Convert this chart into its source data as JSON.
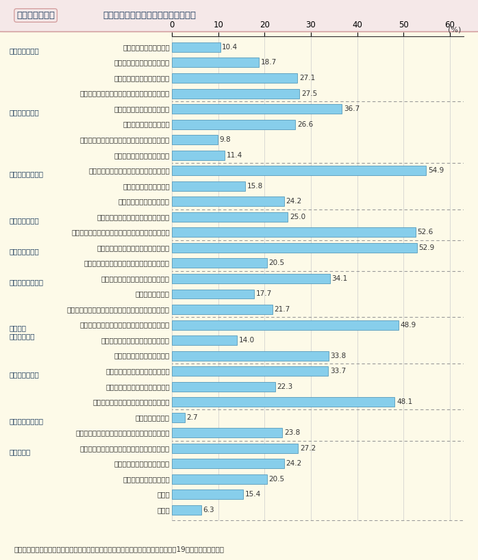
{
  "title_label": "第１－５－２図",
  "title_text": "離れて生活を始めるに当たっての困難",
  "footnote": "（備考）内閣府「配偶者からの暴力の被害者の自立支援等に関する調査結果」（平成19年１月）より作成。",
  "bar_color": "#87CEEB",
  "bar_edge_color": "#5599BB",
  "background_color": "#FDFAE8",
  "title_bg_color": "#F5E8E8",
  "title_border_color": "#D4A0A0",
  "plot_bg_color": "#FDFAE8",
  "separator_color": "#999999",
  "axis_color": "#333333",
  "text_color": "#333333",
  "group_color": "#1a3a5c",
  "categories": [
    "公的施設に入所できない",
    "民間賛貸住宅に入居できない",
    "公的賛貸住宅に入居できない",
    "民間賛貸住宅に入居するための保証人がいない",
    "適当な就職先が見つからない",
    "就職に必要な技能がない",
    "どのように就職活動をすればよいかわからない",
    "就職に必要な保証人がいない",
    "当面の生活をするために必要なお金がない",
    "生活保護が受けられない",
    "児童扶養手当がもらえない",
    "健康保険や年金などの手続がめんどう",
    "住所を知られないようにするため住民票を移せない",
    "自分の体調や気持ちが回復していない",
    "お金がなくて病院での治療等を受けられない",
    "子どもの就学や保育所に関すること",
    "子どもの問題行動",
    "子どもを相手のもとから取り戻すことや子どもの親権",
    "裁判や調停に時間やエネルギー，お金を要する",
    "保護命令の申し立て手続がめんどう",
    "相手が離婚に応じてくれない",
    "相手からの追跡や嫁がらせがある",
    "相手が子どもとの面会を要求する",
    "相手が怖くて家に荷物を取りに行けない",
    "母国語が通じない",
    "公的機関等の支援者から心ない言葉をかけられた",
    "どうすれば自立して生活できるのか情報がない",
    "相談できる人が周りにいない",
    "新しい環境になじめない",
    "その他",
    "無回答"
  ],
  "values": [
    10.4,
    18.7,
    27.1,
    27.5,
    36.7,
    26.6,
    9.8,
    11.4,
    54.9,
    15.8,
    24.2,
    25.0,
    52.6,
    52.9,
    20.5,
    34.1,
    17.7,
    21.7,
    48.9,
    14.0,
    33.8,
    33.7,
    22.3,
    48.1,
    2.7,
    23.8,
    27.2,
    24.2,
    20.5,
    15.4,
    6.3
  ],
  "group_info": [
    {
      "text": "『住居のこと』",
      "row": 0
    },
    {
      "text": "『就労のこと』",
      "row": 4
    },
    {
      "text": "『経済的なこと』",
      "row": 8
    },
    {
      "text": "『手続のこと』",
      "row": 11
    },
    {
      "text": "『健康のこと』",
      "row": 13
    },
    {
      "text": "『子どものこと』",
      "row": 15
    },
    {
      "text": "『裁判・\n調停のこと』",
      "row": 18
    },
    {
      "text": "『相手のこと』",
      "row": 21
    },
    {
      "text": "『支援者のこと』",
      "row": 24
    },
    {
      "text": "『その他』",
      "row": 26
    }
  ],
  "separator_after_rows": [
    3,
    7,
    10,
    12,
    14,
    17,
    20,
    23,
    25
  ],
  "xticks": [
    0,
    10,
    20,
    30,
    40,
    50,
    60
  ],
  "xlim_data": [
    0,
    60
  ]
}
